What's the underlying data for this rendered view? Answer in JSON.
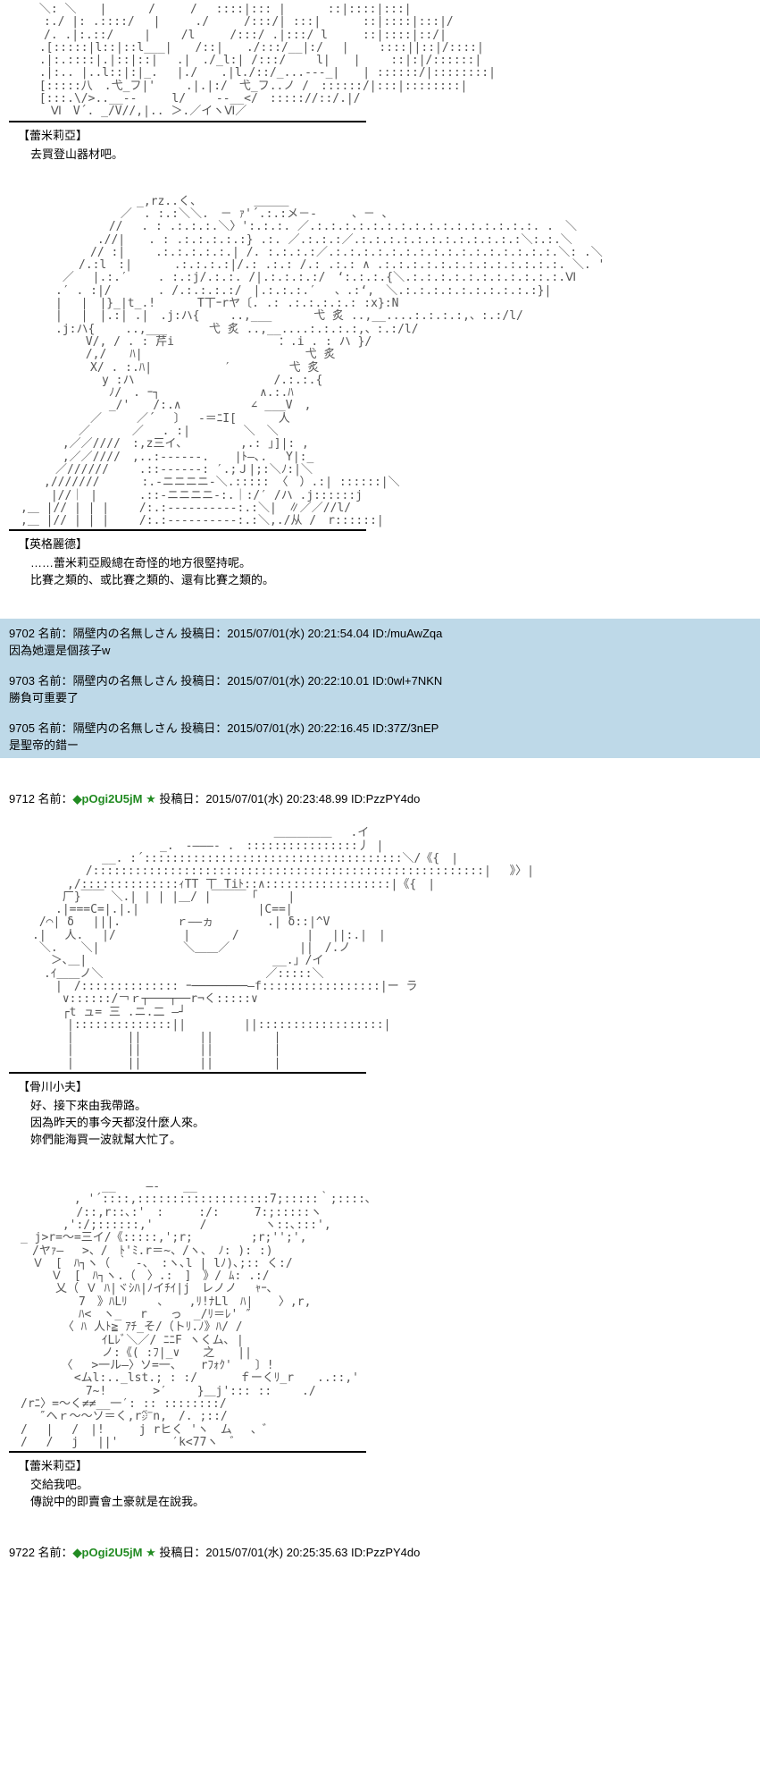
{
  "aa_art": {
    "art1": "　　 ＼: ＼　　|　　　 /　　　/　 ::::|::: |　　　 ::|::::|:::|\n　　　:./ |: .::::/　 |　　　./　　　/:::/| :::|　　　 ::|::::|:::|/\n　　　/. .|:.::/　　 |　　 /l　　　/:::/ .|:::/ l　　　::|::::|::/|\n　　 .[:::::|l::|::l___|　　/::|　　./:::/__|:/　 |　　 ::::||::|/::::|\n　　 .|:.::::|.|::|::|　 .|　./_l:| /:::/　　 l|　　|　　 ::|:|/::::::|\n　　 .|:.. |..l::|:|_.　 |./　　.|l./::/_...---_|　　| ::::::/|::::::::|\n　　 [:::::八　.弋_フ|'　　 .|.|:/　弋_フ..ノ /　::::::/|:::|::::::::|\n　　 [:::.\\/>..__--　　　l/　　 --__</　::::://::/.|/\n　　 　Ⅵ　V´. _/V//,|.. ＞.／イヽⅥ／",
    "art2": "　　　　　　　　　　　_,rz..く、　　　　　＿＿＿\n　　　　　　　　　 ／　. :.:＼＼.　－ ｧ'´.:.:メ－-　　　、－ ､\n　　　　　　　　 //　 . : .:.:.:.＼〉':.:.:. ／.:.:.:.:.:.:.:.:.:.:.:.:.:.:.:.:. .　＼\n　　　　　　　 .//|　　. : .:.:.:.:.:} .:. ／.:.:.:／.:.:.:.:.:.:.:.:.:.:.:.:＼:.:.＼\n　　　　　　　// :|　　 .:.:.:.:.:.| /. :.:.:.:／.:.:.:.:.:.:.:.:.:.:.:.:.:.:.:.:.＼: .＼\n　　　　　　/.:l　:|　　　 .:.:.:.:|/.: .:.: /.: .:.: ∧ .:.:.:.:.:.:.:.:.:.:.:.:.:. ＼. '\n　　　　 ／　 |.:.′　　 . :.:j/.:.:. /|.:.:.:.:/　‘:.:.:.{＼.:.:.:.:.:.:.:.:.:.:.:.Ⅵ\n　　　　.′ . :|/　　　　. /.:.:.:.:/　|.:.:.:.′　 、.:‘,　＼.:.:.:.:.:.:.:.:.:.:}|\n　　　　|　 |　|}_|t_.!　　 　T丅ｰrヤ〔. .: .:.:.:.:.: :x}:N\n　　　　|　 |　|.:| .|　.j:ハ{　　 ..,___　　 　弋 炙 ..,__....:.:.:.:,、:.:/l/\n　　　　.j:ハ{　　 ..,___　　 　弋 炙 ..,__....:.:.:.:,、:.:/l/\n　　　　　　 V/, / . : 芹i　　　　　　　　　：.i . : ハ }/\n　　　　　　 /,/　　ﾊ|　　　　　　　　　　　　　　弋 炙\n　　　　　　　X/ . :.ﾊ|　　　　 　 ′　　　　　弋 炙\n　　　　　　　　y :ハ　　　　　　　　　　　　/.:.:.{\n　　　　　　　　 ﾉ/　. ｰ┐　　　　　　　　 ∧.:.ﾊ\n　　　　　　　　 _/'　　/:.∧　　　　　　∠ ___V　,\n　　　　　　　／　　　／´　 〕　 -＝ﾆI[　　　 人\n　　　　　　／　　　 ／　 . :|　　　　 ＼　＼\n　　　　 ,／／////　:,z三イ､　　　　　,.: 」]|: ,\n　　　　 ,／／////　,..:------. 　 |ﾄ―､.　 Y|:_　　\n　　　　／//////　　 .::------: ′.;Ｊ|;:＼ﾉ:|＼\n　　　,///////　　　 :.-ニニニニ-＼.::::: 〈　）.:| ::::::|＼\n　　　 |//｜ |　　　 .::-ニニニニ-:.｜:/′ /ハ .j::::::j\n　,＿ |// | | | 　　/:.:----------:.:＼|　∥／／//l/\n　,＿ |// | | | 　　/:.:----------:.:＼,./从 /　r::::::|",
    "art3": "　　　 　 　 　 　 　 　 　 　　　　　　　　＿＿＿＿＿　 .イ\n　　　　　　　　　　　　　_.　-―――- .　::::::::::::::::丿 |\n　　　　　　　　__. :´:::::::::::::::::::::::::::::::::::::＼/《{　|\n　　　　 　　/::::::::::::::::::::::::::::::::::::::::::::::::::::::::|　 》〉|\n　　　　　,/::::::::::::::ｨTT 丅 Tiﾄ::∧::::::::::::::::::|《{　|\n　　　　 厂}￣￣ ＼.| | | |＿/ |￣￣￣「　　 |\n　　　　.|===C=|.|.|　　　　　　　 　　 |C==|\n　　 /⌒| δ　 |||.　 　 　 ｒ――ヵ 　　　　.| δ::|^V\n　　.|　 人. 　|/　 　 　 　|　　　 /　　 　 　 |　 ||:.|　|\n　　 ＼.　　＼|　　　　　 　 ＼＿＿／　　　　　　||　/.ノ\n　　　 ＞､＿|　　　　　　　　　　　　　　　　__.」/イ\n　　　.ｲ＿＿ノ＼　　　　　　　　　　　　　　／:::::＼\n　　　　|　/:::::::::::::: ｰ────────―f:::::::::::::::::|ー ラ\n　　　　 ∨::::::/￢ｒ┬───┬──r¬く:::::∨\n　　　　 ┌t ュ= 三 .ニ.二 ―┘\n　　　　　|::::::::::::::||　　　　　||::::::::::::::::::|\n　　　　　|　　　　 ||　　　　　||　　 　 　|\n　　　　　|　　　　 ||　　　　　||　　 　 　|\n　　　　　|　　　　 ||　　　　　||　　 　 　|",
    "art4": "　　　　　　　　__　　 ―‐　　__\n　　　　　 , '´::::,:::::::::::::::::::7;:::::｀;::::､\n　 　 　　 /::,r::､:'　:　　　:/:　　　7:;:::::ヽ\n　　　　 ,':/;::::::,'　　　　/　　　　　ヽ::､:::',\n　_ j>r=〜=三イ/《:::::,';r;　　　　　;r;'';',\n　　/ヤｧ―　 >、/　ﾄ'ﾐ.r＝~、/ヽ、　ﾉ: ): :)\n　　Ｖ　[　ﾊ┐ヽ（ ｀ -、 :ヽ､l | lﾉ)､;:: く:/\n　　　 Ｖ　[　ﾊ┐ヽ.（　〉.:　]　》/ ﾑ: .:/\n　　　　乂（ Ｖ ﾊ|ヾｼﾊ|ﾉイﾁｲ|j　レノノ 　ｬｰ､\n　　　　　　7　》ﾊLﾘ　　 ､ 　 ,ﾘ!ﾅLl　ﾊ| 　 〉,r,\n　　　　　　ﾊ<　ヽ_　 r　　っ　_/ﾘ＝ﾚ' ″\n　　　　 〈 ﾊ 人ﾄ≧ ｱﾁ_そ/（トﾘ.ﾉ》ﾊ/ /\n　　　　　　　　ｲLﾚﾞ＼／/ ﾆﾆF ヽくム､ |\n　　　　　　　　ノ:《( :ﾌ|_∨　　之　　||\n　　　　　〈　 >一ル―〉ソ=一、 　rﾌｫｸ'　　〕!\n　　　　　 <ムl:.._lst.; : :/　　　 ｆーくﾘ_r　　..::,'\n　　　　　 　7~!　　　　>′　　 }＿j'::: ::　　 ./\n　/rﾆ〉=〜く≠≠__一′: :: ::::::::/\n　　 ″ヘｒ〜〜ソ＝く,r㌻n,　/. ;::/\n　/　 |　 /　|!　　　j rヒく 'ヽ　ム 　、゛\n　/　 /　 j　 ||'　　　 　′k<77ヽ　゛"
  },
  "blocks": [
    {
      "character": "【蕾米莉亞】",
      "dialogue": [
        "去買登山器材吧。"
      ]
    },
    {
      "character": "【英格麗德】",
      "dialogue": [
        "……蕾米莉亞殿總在奇怪的地方很堅持呢。",
        "比賽之類的、或比賽之類的、還有比賽之類的。"
      ]
    },
    {
      "character": "【骨川小夫】",
      "dialogue": [
        "好、接下來由我帶路。",
        "因為昨天的事今天都沒什麼人來。",
        "妳們能海買一波就幫大忙了。"
      ]
    },
    {
      "character": "【蕾米莉亞】",
      "dialogue": [
        "交給我吧。",
        "傳說中的即賣會土豪就是在說我。"
      ]
    }
  ],
  "replies": [
    {
      "no": "9702",
      "name_prefix": "名前：",
      "name": "隔壁内の名無しさん",
      "date_prefix": "投稿日：",
      "date": "2015/07/01(水) 20:21:54.04",
      "id_prefix": "ID:",
      "id": "/muAwZqa",
      "body": "因為她還是個孩子w"
    },
    {
      "no": "9703",
      "name_prefix": "名前：",
      "name": "隔壁内の名無しさん",
      "date_prefix": "投稿日：",
      "date": "2015/07/01(水) 20:22:10.01",
      "id_prefix": "ID:",
      "id": "0wl+7NKN",
      "body": "勝負可重要了"
    },
    {
      "no": "9705",
      "name_prefix": "名前：",
      "name": "隔壁内の名無しさん",
      "date_prefix": "投稿日：",
      "date": "2015/07/01(水) 20:22:16.45",
      "id_prefix": "ID:",
      "id": "37Z/3nEP",
      "body": "是聖帝的錯ー"
    }
  ],
  "trip_posts": [
    {
      "no": "9712",
      "name_prefix": "名前：",
      "trip": "◆pOgi2U5jM",
      "star": "★",
      "date_prefix": "投稿日：",
      "date": "2015/07/01(水) 20:23:48.99",
      "id_prefix": "ID:",
      "id": "PzzPY4do"
    },
    {
      "no": "9722",
      "name_prefix": "名前：",
      "trip": "◆pOgi2U5jM",
      "star": "★",
      "date_prefix": "投稿日：",
      "date": "2015/07/01(水) 20:25:35.63",
      "id_prefix": "ID:",
      "id": "PzzPY4do"
    }
  ],
  "colors": {
    "highlight_bg": "#bed9e8",
    "trip_color": "#228b22",
    "text": "#000000"
  }
}
